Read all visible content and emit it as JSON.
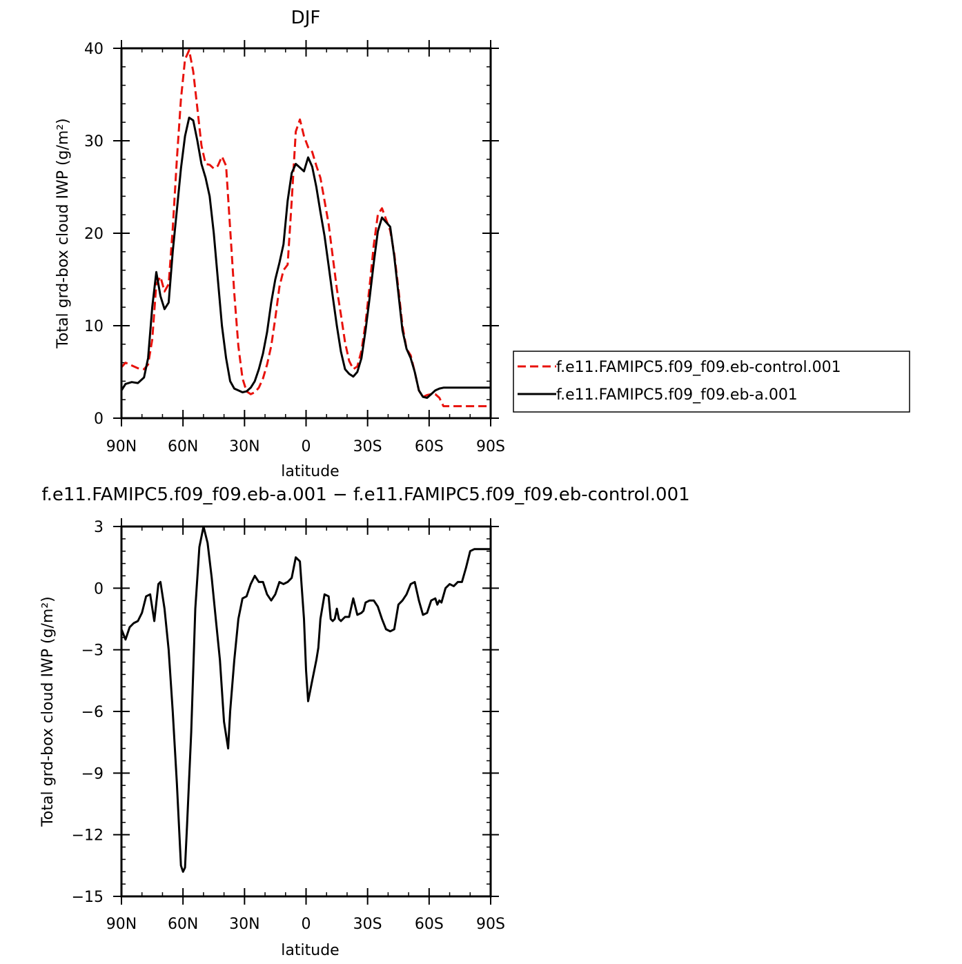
{
  "chart_data": [
    {
      "type": "line",
      "title": "DJF",
      "xlabel": "latitude",
      "ylabel": "Total grd-box cloud IWP (g/m²)",
      "xlim": [
        90,
        -90
      ],
      "ylim": [
        0,
        40
      ],
      "xticks": [
        90,
        60,
        30,
        0,
        -30,
        -60,
        -90
      ],
      "xtick_labels": [
        "90N",
        "60N",
        "30N",
        "0",
        "30S",
        "60S",
        "90S"
      ],
      "yticks": [
        0,
        10,
        20,
        30,
        40
      ],
      "ytick_labels": [
        "0",
        "10",
        "20",
        "30",
        "40"
      ],
      "legend": "right",
      "series": [
        {
          "name": "f.e11.FAMIPC5.f09_f09.eb-control.001",
          "color": "#e8120c",
          "style": "dashed",
          "x": [
            90,
            88,
            85,
            82,
            79,
            77,
            75,
            73,
            71,
            69,
            67,
            65,
            63,
            61,
            59,
            57,
            55,
            53,
            51,
            49,
            47,
            45,
            43,
            41,
            39,
            37,
            35,
            33,
            31,
            29,
            27,
            25,
            23,
            21,
            19,
            17,
            15,
            13,
            11,
            9,
            7,
            5,
            3,
            1,
            -1,
            -3,
            -5,
            -7,
            -9,
            -11,
            -13,
            -15,
            -17,
            -19,
            -21,
            -23,
            -25,
            -27,
            -29,
            -31,
            -33,
            -35,
            -37,
            -39,
            -41,
            -43,
            -45,
            -47,
            -49,
            -51,
            -53,
            -55,
            -57,
            -59,
            -61,
            -63,
            -65,
            -67,
            -69,
            -71,
            -73,
            -75,
            -77,
            -79,
            -81,
            -83,
            -85,
            -87,
            -89,
            -90
          ],
          "y": [
            5.5,
            6.0,
            5.7,
            5.4,
            5.3,
            5.8,
            8.5,
            14.5,
            15.3,
            13.7,
            14.5,
            20.5,
            28.0,
            34.5,
            38.8,
            39.8,
            37.5,
            33.5,
            29.5,
            27.5,
            27.4,
            27.0,
            27.3,
            28.3,
            27.3,
            20.5,
            13.5,
            7.8,
            4.3,
            2.9,
            2.6,
            2.8,
            3.3,
            4.3,
            5.8,
            7.8,
            10.8,
            14.2,
            16.0,
            16.6,
            23.5,
            31.0,
            32.3,
            30.5,
            29.3,
            28.8,
            27.3,
            26.0,
            23.5,
            21.0,
            17.5,
            14.0,
            11.2,
            8.2,
            6.2,
            5.3,
            5.6,
            7.3,
            10.3,
            14.3,
            18.7,
            22.0,
            22.7,
            21.5,
            20.3,
            17.8,
            14.0,
            10.0,
            7.5,
            6.8,
            5.0,
            3.0,
            2.3,
            2.5,
            2.6,
            2.6,
            2.2,
            1.3,
            1.3,
            1.3,
            1.3,
            1.3,
            1.3,
            1.3,
            1.3,
            1.3,
            1.3,
            1.3,
            1.3,
            1.3
          ]
        },
        {
          "name": "f.e11.FAMIPC5.f09_f09.eb-a.001",
          "color": "#000000",
          "style": "solid",
          "x": [
            90,
            88,
            85,
            82,
            79,
            77,
            75,
            73,
            71,
            69,
            67,
            65,
            63,
            61,
            59,
            57,
            55,
            53,
            51,
            49,
            47,
            45,
            43,
            41,
            39,
            37,
            35,
            33,
            31,
            29,
            27,
            25,
            23,
            21,
            19,
            17,
            15,
            13,
            11,
            9,
            7,
            5,
            3,
            1,
            -1,
            -3,
            -5,
            -7,
            -9,
            -11,
            -13,
            -15,
            -17,
            -19,
            -21,
            -23,
            -25,
            -27,
            -29,
            -31,
            -33,
            -35,
            -37,
            -39,
            -41,
            -43,
            -45,
            -47,
            -49,
            -51,
            -53,
            -55,
            -57,
            -59,
            -61,
            -63,
            -65,
            -67,
            -69,
            -71,
            -73,
            -75,
            -77,
            -79,
            -81,
            -83,
            -85,
            -87,
            -89,
            -90
          ],
          "y": [
            3.0,
            3.7,
            3.9,
            3.8,
            4.4,
            6.5,
            12.0,
            15.8,
            13.2,
            11.8,
            12.5,
            18.0,
            22.5,
            27.0,
            30.5,
            32.5,
            32.2,
            30.0,
            27.5,
            26.0,
            24.0,
            20.0,
            15.0,
            10.0,
            6.5,
            4.0,
            3.2,
            3.0,
            2.8,
            2.9,
            3.3,
            4.0,
            5.3,
            7.0,
            9.3,
            12.5,
            15.0,
            16.8,
            18.8,
            23.5,
            26.5,
            27.5,
            27.1,
            26.7,
            28.2,
            27.2,
            25.0,
            22.3,
            19.7,
            16.5,
            13.2,
            10.0,
            7.2,
            5.3,
            4.8,
            4.5,
            5.0,
            6.5,
            9.5,
            13.0,
            16.8,
            20.2,
            21.7,
            21.2,
            20.7,
            17.5,
            13.5,
            9.5,
            7.5,
            6.5,
            5.0,
            3.0,
            2.3,
            2.2,
            2.6,
            3.0,
            3.2,
            3.3,
            3.3,
            3.3,
            3.3,
            3.3,
            3.3,
            3.3,
            3.3,
            3.3,
            3.3,
            3.3,
            3.3,
            3.3
          ]
        }
      ]
    },
    {
      "type": "line",
      "title": "f.e11.FAMIPC5.f09_f09.eb-a.001 − f.e11.FAMIPC5.f09_f09.eb-control.001",
      "xlabel": "latitude",
      "ylabel": "Total grd-box cloud IWP (g/m²)",
      "xlim": [
        90,
        -90
      ],
      "ylim": [
        -15,
        3
      ],
      "xticks": [
        90,
        60,
        30,
        0,
        -30,
        -60,
        -90
      ],
      "xtick_labels": [
        "90N",
        "60N",
        "30N",
        "0",
        "30S",
        "60S",
        "90S"
      ],
      "yticks": [
        -15,
        -12,
        -9,
        -6,
        -3,
        0,
        3
      ],
      "ytick_labels": [
        "−15",
        "−12",
        "−9",
        "−6",
        "−3",
        "0",
        "3"
      ],
      "series": [
        {
          "color": "#000000",
          "style": "solid",
          "x": [
            90,
            88,
            86,
            84,
            82,
            80,
            78,
            76,
            74,
            72,
            71,
            69,
            67,
            65,
            63,
            61,
            60,
            59,
            58,
            56,
            54,
            52,
            50,
            48,
            46,
            44,
            42,
            40,
            38,
            37,
            35,
            33,
            31,
            29,
            27,
            25,
            23,
            21,
            19,
            17,
            15,
            13,
            11,
            9,
            7,
            5,
            3,
            1,
            0,
            -1,
            -3,
            -5,
            -6,
            -7,
            -9,
            -11,
            -12,
            -13,
            -14,
            -15,
            -16,
            -17,
            -19,
            -21,
            -23,
            -25,
            -27,
            -28,
            -29,
            -31,
            -33,
            -35,
            -37,
            -39,
            -41,
            -43,
            -45,
            -47,
            -49,
            -51,
            -53,
            -55,
            -57,
            -59,
            -61,
            -63,
            -64,
            -65,
            -66,
            -68,
            -70,
            -72,
            -74,
            -76,
            -78,
            -80,
            -82,
            -84,
            -86,
            -88,
            -89,
            -90
          ],
          "y": [
            -2.0,
            -2.5,
            -1.9,
            -1.7,
            -1.6,
            -1.2,
            -0.4,
            -0.3,
            -1.6,
            0.2,
            0.3,
            -1.0,
            -3.0,
            -6.0,
            -9.5,
            -13.5,
            -13.8,
            -13.6,
            -11.5,
            -7.0,
            -1.0,
            2.0,
            3.0,
            2.2,
            0.5,
            -1.5,
            -3.5,
            -6.5,
            -7.8,
            -6.0,
            -3.5,
            -1.5,
            -0.5,
            -0.4,
            0.2,
            0.6,
            0.3,
            0.3,
            -0.3,
            -0.6,
            -0.3,
            0.3,
            0.2,
            0.3,
            0.5,
            1.5,
            1.3,
            -1.5,
            -4.0,
            -5.5,
            -4.5,
            -3.5,
            -2.9,
            -1.5,
            -0.3,
            -0.4,
            -1.5,
            -1.6,
            -1.5,
            -1.0,
            -1.5,
            -1.6,
            -1.4,
            -1.4,
            -0.5,
            -1.3,
            -1.2,
            -1.1,
            -0.7,
            -0.6,
            -0.6,
            -0.9,
            -1.5,
            -2.0,
            -2.1,
            -2.0,
            -0.8,
            -0.6,
            -0.3,
            0.2,
            0.3,
            -0.6,
            -1.3,
            -1.2,
            -0.6,
            -0.5,
            -0.8,
            -0.6,
            -0.7,
            0.0,
            0.2,
            0.1,
            0.3,
            0.3,
            1.0,
            1.8,
            1.9,
            1.9,
            1.9,
            1.9,
            1.9,
            1.9
          ]
        }
      ]
    }
  ]
}
